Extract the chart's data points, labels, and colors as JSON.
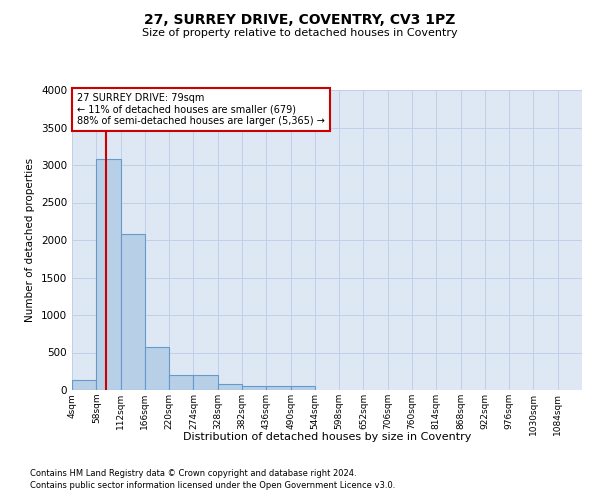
{
  "title": "27, SURREY DRIVE, COVENTRY, CV3 1PZ",
  "subtitle": "Size of property relative to detached houses in Coventry",
  "xlabel": "Distribution of detached houses by size in Coventry",
  "ylabel": "Number of detached properties",
  "footnote1": "Contains HM Land Registry data © Crown copyright and database right 2024.",
  "footnote2": "Contains public sector information licensed under the Open Government Licence v3.0.",
  "property_size": 79,
  "property_label": "27 SURREY DRIVE: 79sqm",
  "annotation_line1": "← 11% of detached houses are smaller (679)",
  "annotation_line2": "88% of semi-detached houses are larger (5,365) →",
  "bin_labels": [
    "4sqm",
    "58sqm",
    "112sqm",
    "166sqm",
    "220sqm",
    "274sqm",
    "328sqm",
    "382sqm",
    "436sqm",
    "490sqm",
    "544sqm",
    "598sqm",
    "652sqm",
    "706sqm",
    "760sqm",
    "814sqm",
    "868sqm",
    "922sqm",
    "976sqm",
    "1030sqm",
    "1084sqm"
  ],
  "bin_edges": [
    4,
    58,
    112,
    166,
    220,
    274,
    328,
    382,
    436,
    490,
    544,
    598,
    652,
    706,
    760,
    814,
    868,
    922,
    976,
    1030,
    1084
  ],
  "bar_heights": [
    130,
    3080,
    2080,
    570,
    200,
    200,
    80,
    60,
    50,
    50,
    0,
    0,
    0,
    0,
    0,
    0,
    0,
    0,
    0,
    0
  ],
  "bar_color": "#b8cfe8",
  "bar_edge_color": "#6699cc",
  "red_line_color": "#cc0000",
  "annotation_box_color": "#cc0000",
  "axes_bg_color": "#dde8f4",
  "background_color": "#ffffff",
  "grid_color": "#c0d0e8",
  "ylim": [
    0,
    4000
  ],
  "yticks": [
    0,
    500,
    1000,
    1500,
    2000,
    2500,
    3000,
    3500,
    4000
  ]
}
